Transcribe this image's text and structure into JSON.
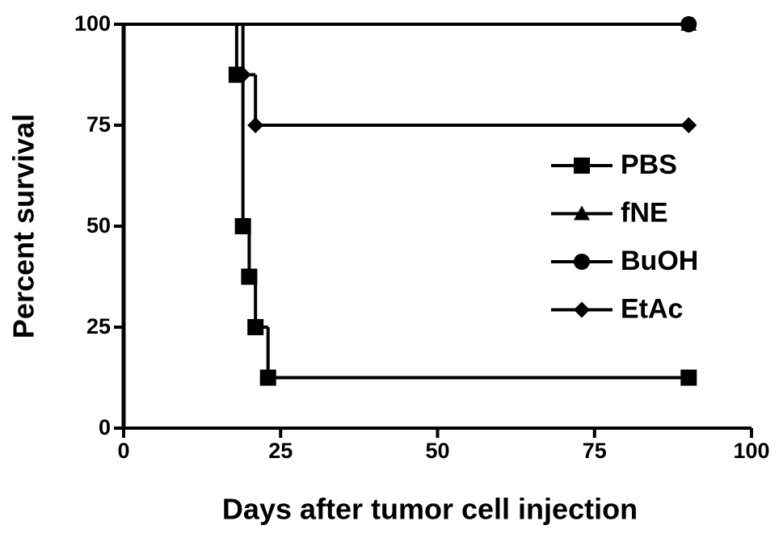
{
  "chart_data": {
    "type": "survival",
    "x_label": "Days after tumor cell injection",
    "y_label": "Percent survival",
    "xlim": [
      0,
      100
    ],
    "xticks": [
      0,
      25,
      50,
      75,
      100
    ],
    "ylim": [
      0,
      100
    ],
    "yticks": [
      0,
      25,
      50,
      75,
      100
    ],
    "series": [
      {
        "name": "PBS",
        "marker": "square",
        "color": "#000000",
        "x": [
          0,
          18,
          19,
          20,
          21,
          23,
          90
        ],
        "values": [
          100,
          87.5,
          50,
          37.5,
          25,
          12.5,
          12.5
        ]
      },
      {
        "name": "fNE",
        "marker": "triangle",
        "color": "#000000",
        "x": [
          0,
          90
        ],
        "values": [
          100,
          100
        ]
      },
      {
        "name": "BuOH",
        "marker": "circle",
        "color": "#000000",
        "x": [
          0,
          90
        ],
        "values": [
          100,
          100
        ]
      },
      {
        "name": "EtAc",
        "marker": "diamond",
        "color": "#000000",
        "x": [
          0,
          19,
          21,
          90
        ],
        "values": [
          100,
          87.5,
          75,
          75
        ]
      }
    ]
  }
}
